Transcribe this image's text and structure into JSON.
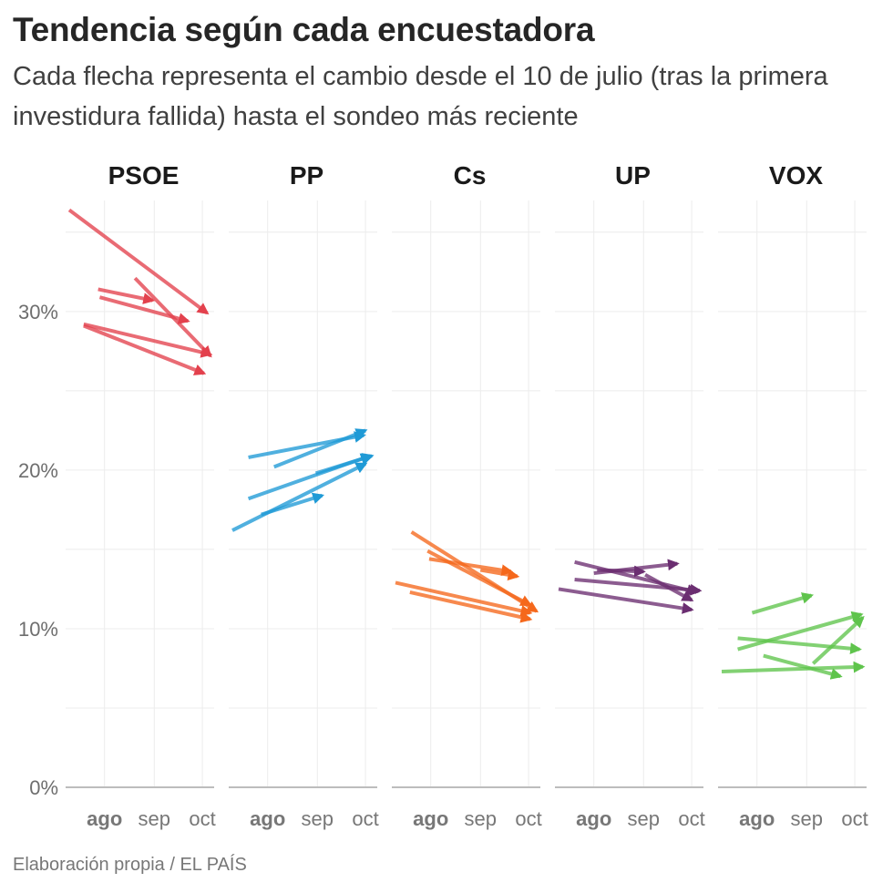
{
  "header": {
    "title": "Tendencia según cada encuestadora",
    "subtitle": "Cada flecha representa el cambio desde el 10 de julio (tras la primera investidura fallida) hasta el sondeo más reciente"
  },
  "footer": {
    "source": "Elaboración propia / EL PAÍS"
  },
  "chart_data": {
    "type": "arrow",
    "y_unit": "%",
    "ylim": [
      0,
      37
    ],
    "yticks": [
      0,
      10,
      20,
      30
    ],
    "ytick_labels": [
      "0%",
      "10%",
      "20%",
      "30%"
    ],
    "x_range": [
      "2019-07-10",
      "2019-10-10"
    ],
    "xticks": [
      "2019-08-01",
      "2019-09-01",
      "2019-10-01"
    ],
    "xtick_labels": [
      "ago",
      "sep",
      "oct"
    ],
    "grid": true,
    "panels": [
      {
        "name": "PSOE",
        "color": "#e3414d",
        "arrows": [
          {
            "x0": "2019-07-10",
            "y0": 36.4,
            "x1": "2019-10-04",
            "y1": 29.9
          },
          {
            "x0": "2019-07-28",
            "y0": 31.4,
            "x1": "2019-08-31",
            "y1": 30.7
          },
          {
            "x0": "2019-07-29",
            "y0": 30.9,
            "x1": "2019-09-22",
            "y1": 29.4
          },
          {
            "x0": "2019-08-20",
            "y0": 32.1,
            "x1": "2019-10-06",
            "y1": 27.2
          },
          {
            "x0": "2019-07-19",
            "y0": 29.2,
            "x1": "2019-10-06",
            "y1": 27.3
          },
          {
            "x0": "2019-07-19",
            "y0": 29.1,
            "x1": "2019-10-02",
            "y1": 26.1
          }
        ]
      },
      {
        "name": "PP",
        "color": "#1f9ad6",
        "arrows": [
          {
            "x0": "2019-07-20",
            "y0": 20.8,
            "x1": "2019-09-30",
            "y1": 22.2
          },
          {
            "x0": "2019-08-05",
            "y0": 20.2,
            "x1": "2019-10-01",
            "y1": 22.5
          },
          {
            "x0": "2019-07-20",
            "y0": 18.2,
            "x1": "2019-10-04",
            "y1": 20.9
          },
          {
            "x0": "2019-08-31",
            "y0": 19.8,
            "x1": "2019-10-05",
            "y1": 20.9
          },
          {
            "x0": "2019-07-10",
            "y0": 16.2,
            "x1": "2019-10-01",
            "y1": 20.4
          },
          {
            "x0": "2019-07-28",
            "y0": 17.2,
            "x1": "2019-09-04",
            "y1": 18.4
          }
        ]
      },
      {
        "name": "Cs",
        "color": "#f5681c",
        "arrows": [
          {
            "x0": "2019-07-20",
            "y0": 16.1,
            "x1": "2019-10-06",
            "y1": 11.1
          },
          {
            "x0": "2019-07-30",
            "y0": 14.9,
            "x1": "2019-10-02",
            "y1": 11.5
          },
          {
            "x0": "2019-07-31",
            "y0": 14.4,
            "x1": "2019-09-20",
            "y1": 13.6
          },
          {
            "x0": "2019-09-01",
            "y0": 13.7,
            "x1": "2019-09-24",
            "y1": 13.3
          },
          {
            "x0": "2019-07-10",
            "y0": 12.9,
            "x1": "2019-10-02",
            "y1": 11.0
          },
          {
            "x0": "2019-07-19",
            "y0": 12.3,
            "x1": "2019-10-02",
            "y1": 10.6
          }
        ]
      },
      {
        "name": "UP",
        "color": "#6b2e71",
        "arrows": [
          {
            "x0": "2019-07-20",
            "y0": 14.2,
            "x1": "2019-10-04",
            "y1": 12.3
          },
          {
            "x0": "2019-08-01",
            "y0": 13.5,
            "x1": "2019-09-22",
            "y1": 14.1
          },
          {
            "x0": "2019-08-03",
            "y0": 13.7,
            "x1": "2019-09-01",
            "y1": 13.6
          },
          {
            "x0": "2019-07-20",
            "y0": 13.1,
            "x1": "2019-10-06",
            "y1": 12.4
          },
          {
            "x0": "2019-09-02",
            "y0": 13.4,
            "x1": "2019-10-01",
            "y1": 11.8
          },
          {
            "x0": "2019-07-10",
            "y0": 12.5,
            "x1": "2019-10-01",
            "y1": 11.2
          }
        ]
      },
      {
        "name": "VOX",
        "color": "#5fc44c",
        "arrows": [
          {
            "x0": "2019-07-29",
            "y0": 11.0,
            "x1": "2019-09-04",
            "y1": 12.1
          },
          {
            "x0": "2019-07-20",
            "y0": 8.7,
            "x1": "2019-10-05",
            "y1": 10.9
          },
          {
            "x0": "2019-09-05",
            "y0": 7.8,
            "x1": "2019-10-06",
            "y1": 10.7
          },
          {
            "x0": "2019-07-20",
            "y0": 9.4,
            "x1": "2019-10-04",
            "y1": 8.7
          },
          {
            "x0": "2019-08-05",
            "y0": 8.3,
            "x1": "2019-09-22",
            "y1": 7.0
          },
          {
            "x0": "2019-07-10",
            "y0": 7.3,
            "x1": "2019-10-06",
            "y1": 7.6
          }
        ]
      }
    ]
  }
}
